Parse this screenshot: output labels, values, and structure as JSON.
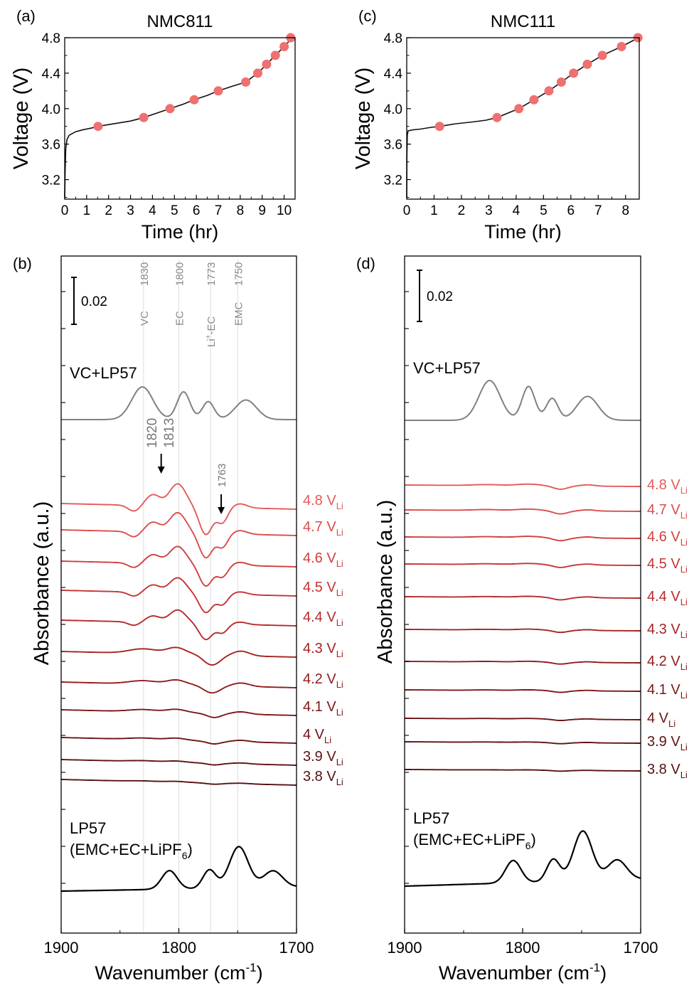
{
  "chart_data": [
    {
      "id": "a",
      "type": "line",
      "panel_label": "(a)",
      "title": "NMC811",
      "xlabel": "Time (hr)",
      "ylabel": "Voltage (V)",
      "xlim": [
        0,
        10.5
      ],
      "ylim": [
        2.98,
        4.8
      ],
      "xticks": [
        0,
        1,
        2,
        3,
        4,
        5,
        6,
        7,
        8,
        9,
        10
      ],
      "yticks": [
        3.2,
        3.6,
        4.0,
        4.4,
        4.8
      ],
      "ytick_labels": [
        "3.2",
        "3.6",
        "4.0",
        "4.4",
        "4.8"
      ],
      "curve": {
        "x": [
          0,
          0.02,
          0.05,
          0.1,
          0.2,
          0.35,
          0.5,
          0.8,
          1.2,
          1.52,
          2.0,
          2.5,
          3.0,
          3.6,
          4.2,
          4.8,
          5.4,
          5.9,
          6.5,
          7.0,
          7.6,
          8.25,
          8.8,
          9.2,
          9.6,
          10.0,
          10.3,
          10.5
        ],
        "y": [
          3.0,
          3.3,
          3.55,
          3.65,
          3.7,
          3.72,
          3.74,
          3.76,
          3.78,
          3.8,
          3.82,
          3.84,
          3.86,
          3.9,
          3.95,
          4.0,
          4.05,
          4.1,
          4.15,
          4.2,
          4.25,
          4.3,
          4.4,
          4.5,
          4.6,
          4.7,
          4.78,
          4.8
        ]
      },
      "markers": {
        "x": [
          1.52,
          3.6,
          4.8,
          5.9,
          7.0,
          8.25,
          8.8,
          9.2,
          9.6,
          10.0,
          10.3
        ],
        "y": [
          3.8,
          3.9,
          4.0,
          4.1,
          4.2,
          4.3,
          4.4,
          4.5,
          4.6,
          4.7,
          4.8
        ]
      }
    },
    {
      "id": "c",
      "type": "line",
      "panel_label": "(c)",
      "title": "NMC111",
      "xlabel": "Time (hr)",
      "ylabel": "Voltage (V)",
      "xlim": [
        0,
        8.5
      ],
      "ylim": [
        2.98,
        4.8
      ],
      "xticks": [
        0,
        1,
        2,
        3,
        4,
        5,
        6,
        7,
        8
      ],
      "yticks": [
        3.2,
        3.6,
        4.0,
        4.4,
        4.8
      ],
      "ytick_labels": [
        "3.2",
        "3.6",
        "4.0",
        "4.4",
        "4.8"
      ],
      "curve": {
        "x": [
          0,
          0.005,
          0.02,
          0.05,
          0.2,
          0.5,
          0.9,
          1.2,
          1.8,
          2.4,
          2.9,
          3.3,
          3.7,
          4.1,
          4.65,
          5.2,
          5.65,
          6.1,
          6.6,
          7.15,
          7.85,
          8.35,
          8.5
        ],
        "y": [
          3.0,
          3.45,
          3.7,
          3.75,
          3.76,
          3.77,
          3.79,
          3.8,
          3.83,
          3.85,
          3.87,
          3.9,
          3.95,
          4.0,
          4.1,
          4.2,
          4.3,
          4.4,
          4.5,
          4.6,
          4.7,
          4.78,
          4.8
        ]
      },
      "markers": {
        "x": [
          1.2,
          3.3,
          4.1,
          4.65,
          5.2,
          5.65,
          6.1,
          6.6,
          7.15,
          7.85,
          8.45
        ],
        "y": [
          3.8,
          3.9,
          4.0,
          4.1,
          4.2,
          4.3,
          4.4,
          4.5,
          4.6,
          4.7,
          4.8
        ]
      }
    },
    {
      "id": "b",
      "type": "line",
      "panel_label": "(b)",
      "xlabel": "Wavenumber (cm⁻¹)",
      "xlabel_text": "Wavenumber (cm",
      "xlabel_sup": "-1",
      "ylabel": "Absorbance (a.u.)",
      "xlim": [
        1900,
        1700
      ],
      "xticks": [
        1900,
        1800,
        1700
      ],
      "scale_bar": "0.02",
      "reference_lines": [
        {
          "wavenumber": 1830,
          "value": "1830",
          "label": "VC"
        },
        {
          "wavenumber": 1800,
          "value": "1800",
          "label": "EC"
        },
        {
          "wavenumber": 1773,
          "value": "1773",
          "label_main": "Li",
          "label_sup": "+",
          "label_tail": "-EC"
        },
        {
          "wavenumber": 1750,
          "value": "1750",
          "label": "EMC"
        }
      ],
      "arrow_annotations": [
        {
          "wavenumber": 1813,
          "label1": "1820",
          "label2": "1813"
        },
        {
          "wavenumber": 1763,
          "label1": "1763"
        }
      ],
      "top_reference_label": "VC+LP57",
      "bottom_reference_label_line1": "LP57",
      "bottom_reference_label_line2_main": "(EMC+EC+LiPF",
      "bottom_reference_label_line2_sub": "6",
      "bottom_reference_label_line2_tail": ")",
      "series": [
        {
          "name": "4.8 V",
          "volt": "4.8",
          "color": "#e45a5a",
          "amp": 1.35
        },
        {
          "name": "4.7 V",
          "volt": "4.7",
          "color": "#dc4c4c",
          "amp": 1.2
        },
        {
          "name": "4.6 V",
          "volt": "4.6",
          "color": "#d13f3f",
          "amp": 1.05
        },
        {
          "name": "4.5 V",
          "volt": "4.5",
          "color": "#c53434",
          "amp": 0.92
        },
        {
          "name": "4.4 V",
          "volt": "4.4",
          "color": "#b52b2b",
          "amp": 0.78
        },
        {
          "name": "4.3 V",
          "volt": "4.3",
          "color": "#a52323",
          "amp": 0.62
        },
        {
          "name": "4.2 V",
          "volt": "4.2",
          "color": "#921c1c",
          "amp": 0.45
        },
        {
          "name": "4.1 V",
          "volt": "4.1",
          "color": "#7e1717",
          "amp": 0.3
        },
        {
          "name": "4 V",
          "volt": "4",
          "color": "#6d1414",
          "amp": 0.2
        },
        {
          "name": "3.9 V",
          "volt": "3.9",
          "color": "#601212",
          "amp": 0.12
        },
        {
          "name": "3.8 V",
          "volt": "3.8",
          "color": "#561111",
          "amp": 0.08
        }
      ],
      "label_subscript": "Li"
    },
    {
      "id": "d",
      "type": "line",
      "panel_label": "(d)",
      "xlabel": "Wavenumber (cm⁻¹)",
      "xlabel_text": "Wavenumber (cm",
      "xlabel_sup": "-1",
      "ylabel": "Absorbance (a.u.)",
      "xlim": [
        1900,
        1700
      ],
      "xticks": [
        1900,
        1800,
        1700
      ],
      "scale_bar": "0.02",
      "top_reference_label": "VC+LP57",
      "bottom_reference_label_line1": "LP57",
      "bottom_reference_label_line2_main": "(EMC+EC+LiPF",
      "bottom_reference_label_line2_sub": "6",
      "bottom_reference_label_line2_tail": ")",
      "series": [
        {
          "name": "4.8 V",
          "volt": "4.8",
          "color": "#e45a5a",
          "amp": 0.32
        },
        {
          "name": "4.7 V",
          "volt": "4.7",
          "color": "#dc4c4c",
          "amp": 0.3
        },
        {
          "name": "4.6 V",
          "volt": "4.6",
          "color": "#d13f3f",
          "amp": 0.27
        },
        {
          "name": "4.5 V",
          "volt": "4.5",
          "color": "#c53434",
          "amp": 0.25
        },
        {
          "name": "4.4 V",
          "volt": "4.4",
          "color": "#b52b2b",
          "amp": 0.22
        },
        {
          "name": "4.3 V",
          "volt": "4.3",
          "color": "#a52323",
          "amp": 0.2
        },
        {
          "name": "4.2 V",
          "volt": "4.2",
          "color": "#921c1c",
          "amp": 0.17
        },
        {
          "name": "4.1 V",
          "volt": "4.1",
          "color": "#7e1717",
          "amp": 0.15
        },
        {
          "name": "4 V",
          "volt": "4",
          "color": "#6d1414",
          "amp": 0.12
        },
        {
          "name": "3.9 V",
          "volt": "3.9",
          "color": "#601212",
          "amp": 0.1
        },
        {
          "name": "3.8 V",
          "volt": "3.8",
          "color": "#561111",
          "amp": 0.07
        }
      ],
      "label_subscript": "Li"
    }
  ]
}
